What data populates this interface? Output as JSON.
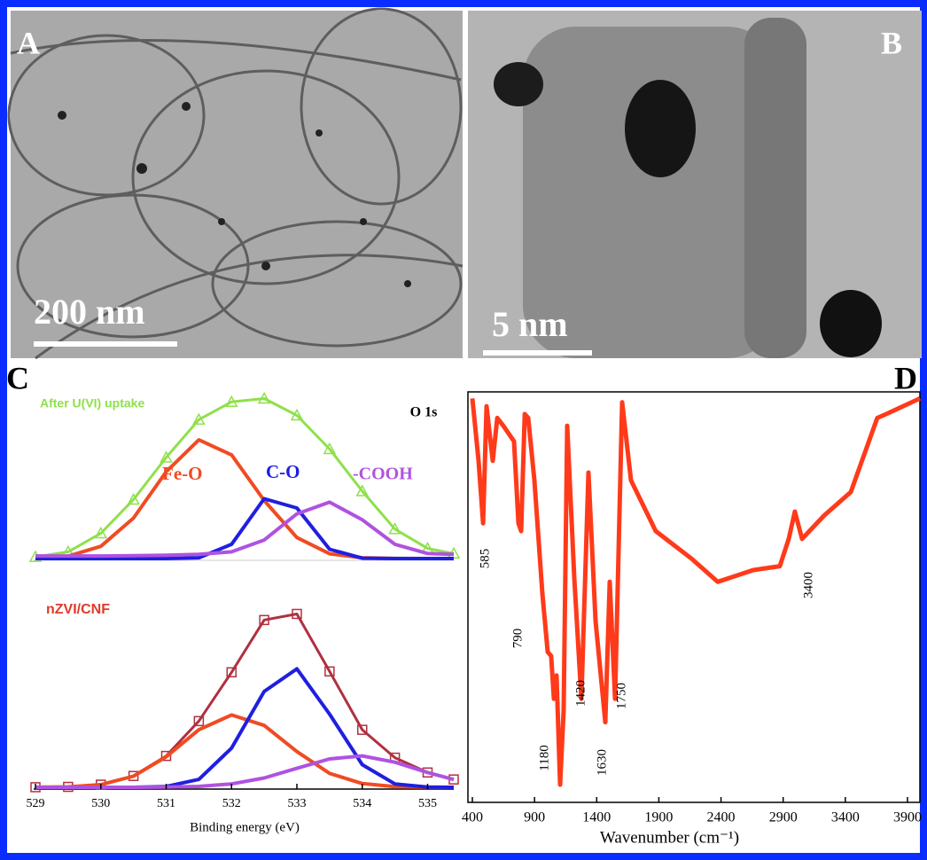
{
  "panels": {
    "labels": [
      "A",
      "B",
      "C",
      "D"
    ],
    "scale_bars": [
      "200 nm",
      "5 nm"
    ]
  },
  "chart_data": [
    {
      "type": "line",
      "label": "O 1s",
      "x": [
        529,
        529.5,
        530,
        530.5,
        531,
        531.5,
        532,
        532.5,
        533,
        533.5,
        534,
        534.5,
        535,
        535.4
      ],
      "xlim": [
        529,
        535.4
      ],
      "ylim": [
        0,
        200
      ],
      "series": [
        {
          "name": "After U(VI) uptake",
          "color": "#8fe04a",
          "marker": "triangle",
          "values": [
            2,
            8,
            30,
            70,
            120,
            165,
            186,
            190,
            170,
            130,
            80,
            35,
            12,
            6
          ]
        },
        {
          "name": "Fe-O",
          "color": "#f04b23",
          "values": [
            0.4,
            2.8,
            14.5,
            48,
            103,
            141,
            123,
            69,
            25,
            5.7,
            0.9,
            0.1,
            0,
            0
          ]
        },
        {
          "name": "C-O",
          "color": "#1f1fe0",
          "values": [
            0,
            0,
            0,
            0,
            0,
            0.9,
            17,
            71,
            60,
            11,
            0.4,
            0,
            0,
            0
          ]
        },
        {
          "name": "-COOH",
          "color": "#b052e0",
          "values": [
            3,
            3,
            3,
            3.5,
            4,
            5,
            8,
            22,
            53,
            67,
            46,
            17,
            6,
            5
          ]
        }
      ]
    },
    {
      "type": "line",
      "xlabel": "Binding energy (eV)",
      "x": [
        529,
        529.5,
        530,
        530.5,
        531,
        531.5,
        532,
        532.5,
        533,
        533.5,
        534,
        534.5,
        535,
        535.4
      ],
      "xlim": [
        529,
        535.4
      ],
      "ylim": [
        0,
        230
      ],
      "xticks": [
        529,
        530,
        531,
        532,
        533,
        534,
        535
      ],
      "series": [
        {
          "name": "nZVI/CNF",
          "color": "#b03040",
          "marker": "square",
          "values": [
            0.1,
            0.5,
            3,
            13,
            36,
            76,
            132,
            192,
            199,
            133,
            66,
            34,
            17,
            9
          ]
        },
        {
          "color": "#f04b23",
          "values": [
            0.1,
            0.5,
            3.1,
            12.7,
            35,
            66,
            83,
            71,
            41,
            16,
            4.3,
            0.8,
            0.1,
            0
          ]
        },
        {
          "color": "#1f1fe0",
          "values": [
            0,
            0,
            0,
            0.05,
            0.9,
            9.1,
            45,
            110,
            136,
            84,
            26,
            3.9,
            0.3,
            0
          ]
        },
        {
          "color": "#b052e0",
          "values": [
            0,
            0,
            0,
            0,
            0.2,
            1,
            3.9,
            10.7,
            21.8,
            32.6,
            36,
            28.8,
            17,
            9
          ]
        }
      ]
    },
    {
      "type": "line",
      "xlabel": "Wavenumber (cm⁻¹)",
      "color": "#ff3a1a",
      "x": [
        400,
        450,
        486,
        514,
        564,
        600,
        649,
        735,
        771,
        792,
        821,
        849,
        899,
        963,
        1006,
        1034,
        1056,
        1077,
        1106,
        1134,
        1163,
        1220,
        1277,
        1334,
        1391,
        1469,
        1505,
        1548,
        1605,
        1676,
        1875,
        2160,
        2374,
        2659,
        2873,
        2945,
        2994,
        3052,
        3230,
        3444,
        3657,
        3729,
        4000
      ],
      "values": [
        99,
        83,
        67,
        97,
        83,
        94,
        92,
        88,
        67,
        65,
        95,
        94,
        78,
        49,
        34,
        33,
        22,
        28,
        0,
        19,
        92,
        53,
        22,
        80,
        42,
        16,
        52,
        22,
        98,
        78,
        65,
        58,
        52,
        55,
        56,
        63,
        70,
        63,
        69,
        75,
        94,
        95,
        99
      ],
      "xlim": [
        400,
        4000
      ],
      "ylim": [
        0,
        100
      ],
      "xticks": [
        400,
        900,
        1400,
        1900,
        2400,
        2900,
        3400,
        3900
      ],
      "annotations": [
        "585",
        "790",
        "1180",
        "1420",
        "1630",
        "1750",
        "3400"
      ]
    }
  ]
}
